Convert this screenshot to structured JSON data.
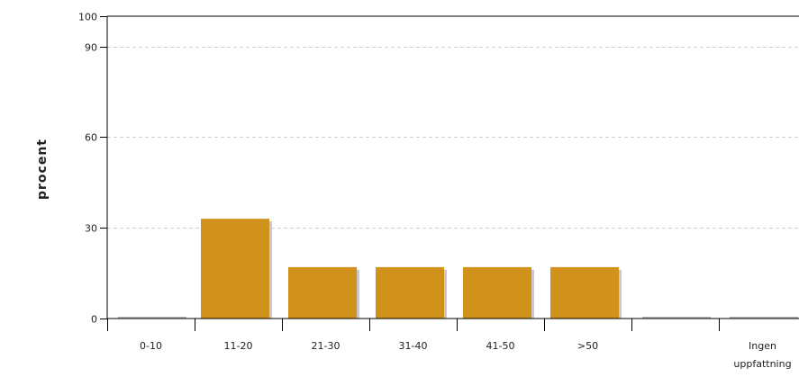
{
  "chart_data": {
    "type": "bar",
    "title": "",
    "xlabel": "",
    "ylabel": "procent",
    "categories": [
      "0-10",
      "11-20",
      "21-30",
      "31-40",
      "41-50",
      ">50",
      "",
      "Ingen uppfattning"
    ],
    "category_label_lines": [
      [
        "0-10"
      ],
      [
        "11-20"
      ],
      [
        "21-30"
      ],
      [
        "31-40"
      ],
      [
        "41-50"
      ],
      [
        ">50"
      ],
      [
        ""
      ],
      [
        "Ingen",
        "uppfattning"
      ]
    ],
    "values": [
      0,
      33,
      17,
      17,
      17,
      17,
      0,
      0
    ],
    "ylim": [
      0,
      100
    ],
    "yticks": [
      0,
      30,
      60,
      90,
      100
    ],
    "gridlines_at": [
      30,
      60,
      90
    ],
    "grid": true,
    "legend": "none",
    "colors": {
      "bar": "#D0921A",
      "bar_shadow": "#C9C9C9",
      "axis": "#000000",
      "grid": "#D0D0D0",
      "zero_bar": "#B8B8B8"
    }
  }
}
